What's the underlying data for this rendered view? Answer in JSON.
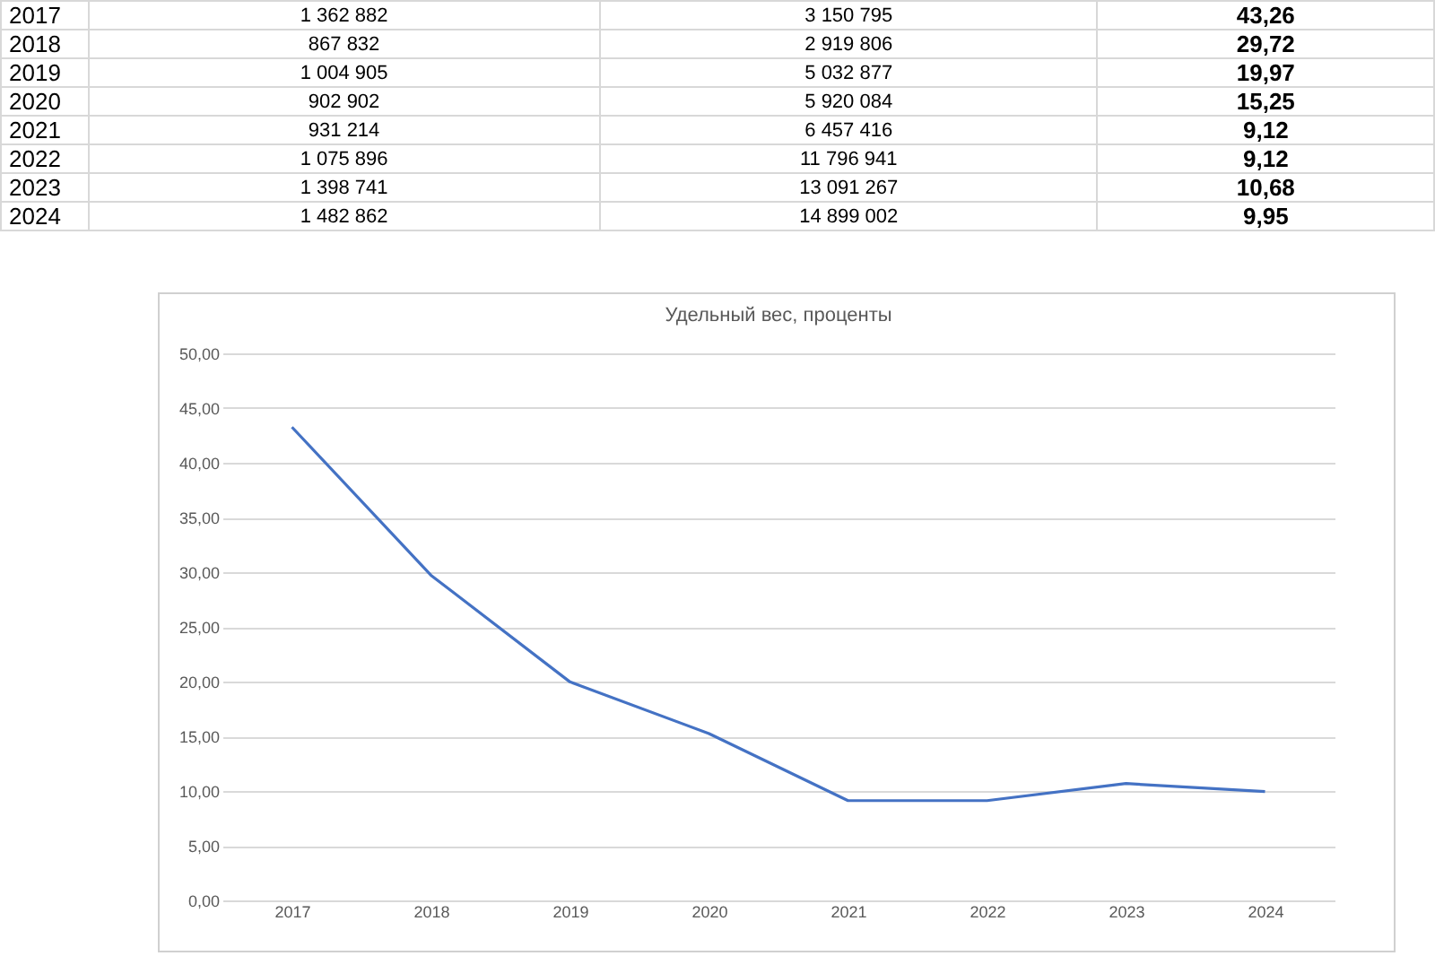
{
  "chart_data": {
    "type": "line",
    "title": "Удельный вес, проценты",
    "categories": [
      "2017",
      "2018",
      "2019",
      "2020",
      "2021",
      "2022",
      "2023",
      "2024"
    ],
    "series": [
      {
        "color": "#4472c4",
        "values": [
          43.26,
          29.72,
          19.97,
          15.25,
          9.12,
          9.12,
          10.68,
          9.95
        ]
      }
    ],
    "value_labels": [
      "43,26",
      "29,72",
      "19,97",
      "15,25",
      "9,12",
      "9,12",
      "10,68",
      "9,95"
    ],
    "annotations": [
      "1 362 882",
      "3 150 795",
      "867 832",
      "2 919 806",
      "1 004 905",
      "5 032 877",
      "902 902",
      "5 920 084",
      "931 214",
      "6 457 416",
      "1 075 896",
      "11 796 941",
      "1 398 741",
      "13 091 267",
      "1 482 862",
      "14 899 002"
    ],
    "ylim": [
      0,
      50
    ],
    "yticks": [
      {
        "value": 0,
        "label": "0,00"
      },
      {
        "value": 5,
        "label": "5,00"
      },
      {
        "value": 10,
        "label": "10,00"
      },
      {
        "value": 15,
        "label": "15,00"
      },
      {
        "value": 20,
        "label": "20,00"
      },
      {
        "value": 25,
        "label": "25,00"
      },
      {
        "value": 30,
        "label": "30,00"
      },
      {
        "value": 35,
        "label": "35,00"
      },
      {
        "value": 40,
        "label": "40,00"
      },
      {
        "value": 45,
        "label": "45,00"
      },
      {
        "value": 50,
        "label": "50,00"
      }
    ],
    "grid": "y"
  }
}
